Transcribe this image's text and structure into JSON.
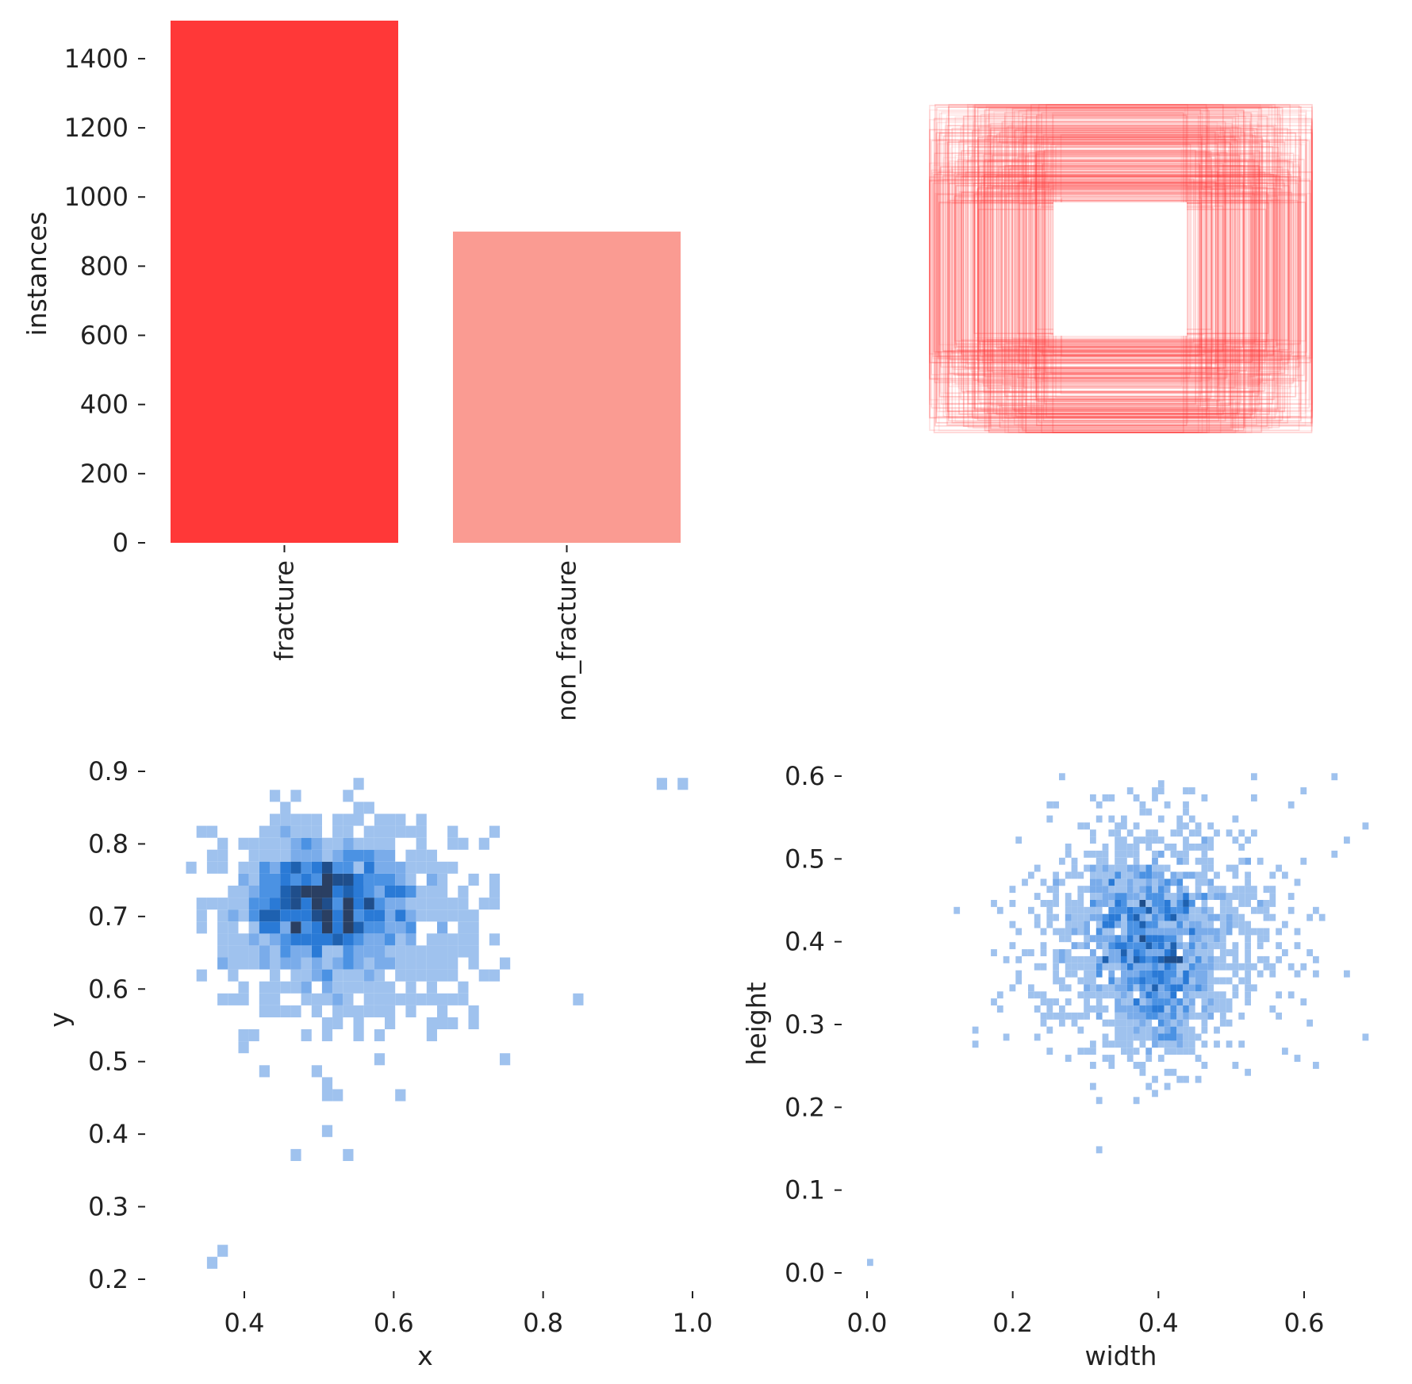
{
  "chart_data": [
    {
      "type": "bar",
      "categories": [
        "fracture",
        "non_fracture"
      ],
      "values": [
        1510,
        900
      ],
      "ylabel": "instances",
      "xlabel": "",
      "yticks": [
        0,
        200,
        400,
        600,
        800,
        1000,
        1200,
        1400
      ],
      "ylim": [
        0,
        1510
      ],
      "colors": [
        "#ff3838",
        "#fa9b92"
      ],
      "grid": false
    },
    {
      "type": "scatter",
      "description": "label box outlines overlay",
      "xlabel": "",
      "ylabel": "",
      "color": "#ff3838"
    },
    {
      "type": "heatmap",
      "xlabel": "x",
      "ylabel": "y",
      "xticks": [
        "0.4",
        "0.6",
        "0.8",
        "1.0"
      ],
      "yticks": [
        "0.2",
        "0.3",
        "0.4",
        "0.5",
        "0.6",
        "0.7",
        "0.8",
        "0.9"
      ],
      "xlim": [
        0.3,
        1.0
      ],
      "ylim": [
        0.2,
        0.9
      ],
      "color": "#1f77d4",
      "grid": false
    },
    {
      "type": "heatmap",
      "xlabel": "width",
      "ylabel": "height",
      "xticks": [
        "0.0",
        "0.2",
        "0.4",
        "0.6"
      ],
      "yticks": [
        "0.0",
        "0.1",
        "0.2",
        "0.3",
        "0.4",
        "0.5",
        "0.6"
      ],
      "xlim": [
        0.0,
        0.7
      ],
      "ylim": [
        0.0,
        0.6
      ],
      "color": "#1f77d4",
      "grid": false
    }
  ]
}
